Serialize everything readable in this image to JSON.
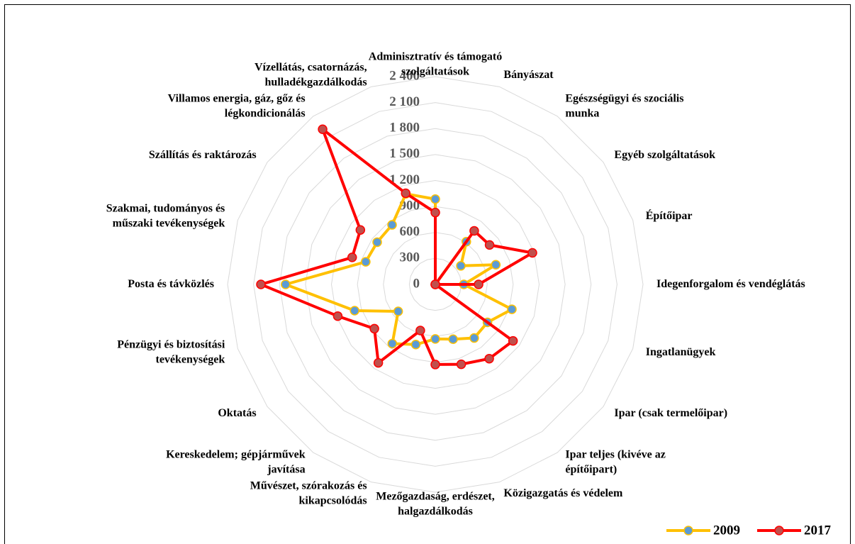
{
  "chart_data": {
    "type": "radar",
    "categories": [
      "Adminisztratív és támogató\nszolgáltatások",
      "Bányászat",
      "Egészségügyi és szociális\nmunka",
      "Egyéb szolgáltatások",
      "Építőipar",
      "Idegenforgalom és vendéglátás",
      "Ingatlanügyek",
      "Ipar (csak termelőipar)",
      "Ipar teljes (kivéve az\népítőipart)",
      "Közigazgatás és védelem",
      "Mezőgazdaság, erdészet,\nhalgazdálkodás",
      "Művészet, szórakozás és\nkikapcsolódás",
      "Kereskedelem; gépjárművek\njavítása",
      "Oktatás",
      "Pénzügyi és biztosítási\ntevékenységek",
      "Posta és távközlés",
      "Szakmai, tudományos és\nműszaki tevékenységek",
      "Szállítás és raktározás",
      "Villamos energia, gáz, gőz és\nlégkondicionálás",
      "Vízellátás, csatornázás,\nhulladékgazdálkodás"
    ],
    "series": [
      {
        "name": "2009",
        "color": "#FFC000",
        "marker_color": "#5B9BD5",
        "values": [
          985,
          0,
          610,
          365,
          735,
          330,
          930,
          745,
          765,
          665,
          630,
          730,
          845,
          530,
          980,
          1730,
          845,
          830,
          850,
          1100
        ]
      },
      {
        "name": "2017",
        "color": "#FF0000",
        "marker_color": "#C0504D",
        "values": [
          830,
          0,
          765,
          775,
          1180,
          500,
          0,
          1110,
          1060,
          970,
          925,
          560,
          1120,
          870,
          1185,
          2015,
          1010,
          1070,
          2215,
          1107
        ]
      }
    ],
    "ylim": [
      0,
      2400
    ],
    "yticks": [
      0,
      {
        "value": 300,
        "label": "300"
      },
      {
        "value": 600,
        "label": "600"
      },
      {
        "value": 900,
        "label": "900"
      },
      {
        "value": 1200,
        "label": "1 200"
      },
      {
        "value": 1500,
        "label": "1 500"
      },
      {
        "value": 1800,
        "label": "1 800"
      },
      {
        "value": 2100,
        "label": "2 100"
      },
      {
        "value": 2400,
        "label": "2 400"
      }
    ],
    "grid": true,
    "legend": "bottom-right"
  }
}
